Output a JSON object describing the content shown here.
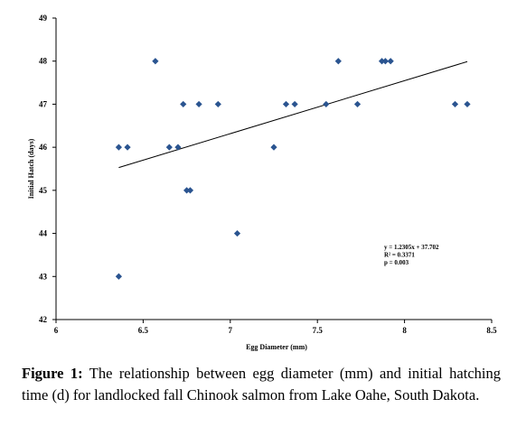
{
  "chart_data": {
    "type": "scatter",
    "xlabel": "Egg Diameter (mm)",
    "ylabel": "Initial Hatch (days)",
    "xlim": [
      6,
      8.5
    ],
    "ylim": [
      42,
      49
    ],
    "x_ticks": [
      "6",
      "6.5",
      "7",
      "7.5",
      "8",
      "8.5"
    ],
    "y_ticks": [
      "42",
      "43",
      "44",
      "45",
      "46",
      "47",
      "48",
      "49"
    ],
    "marker_color": "#2a5490",
    "points": [
      {
        "x": 6.36,
        "y": 43
      },
      {
        "x": 6.36,
        "y": 46
      },
      {
        "x": 6.41,
        "y": 46
      },
      {
        "x": 6.57,
        "y": 48
      },
      {
        "x": 6.65,
        "y": 46
      },
      {
        "x": 6.7,
        "y": 46
      },
      {
        "x": 6.73,
        "y": 47
      },
      {
        "x": 6.75,
        "y": 45
      },
      {
        "x": 6.77,
        "y": 45
      },
      {
        "x": 6.82,
        "y": 47
      },
      {
        "x": 6.93,
        "y": 47
      },
      {
        "x": 7.04,
        "y": 44
      },
      {
        "x": 7.25,
        "y": 46
      },
      {
        "x": 7.32,
        "y": 47
      },
      {
        "x": 7.37,
        "y": 47
      },
      {
        "x": 7.55,
        "y": 47
      },
      {
        "x": 7.62,
        "y": 48
      },
      {
        "x": 7.73,
        "y": 47
      },
      {
        "x": 7.87,
        "y": 48
      },
      {
        "x": 7.89,
        "y": 48
      },
      {
        "x": 7.92,
        "y": 48
      },
      {
        "x": 8.29,
        "y": 47
      },
      {
        "x": 8.36,
        "y": 47
      }
    ],
    "trendline": {
      "slope": 1.2305,
      "intercept": 37.702,
      "x_range": [
        6.36,
        8.36
      ]
    },
    "annotations": [
      "y = 1.2305x + 37.702",
      "R² = 0.3371",
      "p = 0.003"
    ]
  },
  "caption": {
    "label": "Figure 1:",
    "text": " The relationship between egg diameter (mm) and initial hatching time (d) for landlocked fall Chinook salmon from Lake Oahe, South Dakota."
  }
}
